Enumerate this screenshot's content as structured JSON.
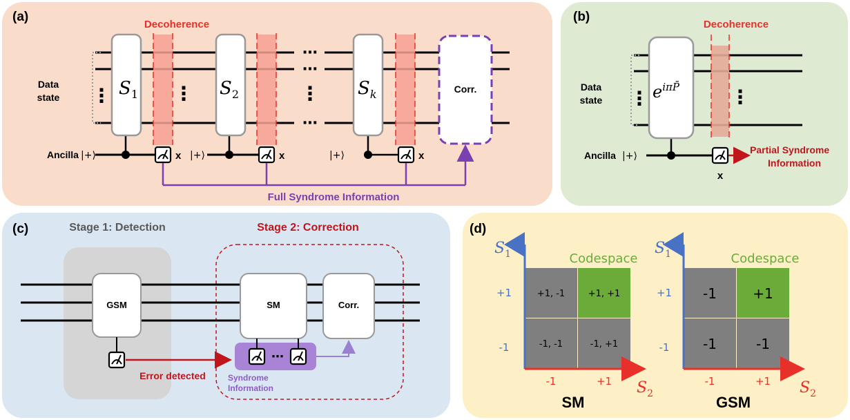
{
  "panel_a": {
    "label": "(a)",
    "decoherence": "Decoherence",
    "data_state_line1": "Data",
    "data_state_line2": "state",
    "stab1": "S",
    "stab1_sub": "1",
    "stab2": "S",
    "stab2_sub": "2",
    "stabk": "S",
    "stabk_sub": "k",
    "corr": "Corr.",
    "ancilla": "Ancilla",
    "ket_plus": "|+⟩",
    "x": "x",
    "full_syndrome": "Full Syndrome Information",
    "dots": "⋯",
    "vdots": "⋮"
  },
  "panel_b": {
    "label": "(b)",
    "decoherence": "Decoherence",
    "data_state_line1": "Data",
    "data_state_line2": "state",
    "gate": "e",
    "gate_exp": "iπP̄",
    "ancilla": "Ancilla",
    "ket_plus": "|+⟩",
    "x": "x",
    "partial_line1": "Partial Syndrome",
    "partial_line2": "Information",
    "vdots": "⋮"
  },
  "panel_c": {
    "label": "(c)",
    "stage1": "Stage 1: Detection",
    "stage2": "Stage 2: Correction",
    "gsm": "GSM",
    "sm": "SM",
    "corr": "Corr.",
    "error_detected": "Error detected",
    "syndrome_line1": "Syndrome",
    "syndrome_line2": "Information",
    "dots": "⋯"
  },
  "panel_d": {
    "label": "(d)",
    "s1": "S",
    "s1_sub": "1",
    "s2": "S",
    "s2_sub": "2",
    "codespace": "Codespace",
    "tick_plus": "+1",
    "tick_minus": "-1",
    "sm_title": "SM",
    "gsm_title": "GSM",
    "sm_cells": [
      "+1, -1",
      "+1, +1",
      "-1, -1",
      "-1, +1"
    ],
    "gsm_cells": [
      "-1",
      "+1",
      "-1",
      "-1"
    ]
  },
  "colors": {
    "panel_a_bg": "#f9dcc9",
    "panel_b_bg": "#dfead3",
    "panel_c_bg": "#dbe6f3",
    "panel_d_bg": "#fdefc6",
    "decoherence_red": "#e8302a",
    "purple": "#7a3fb0",
    "dark_red": "#c0151b",
    "green": "#6aab3a",
    "gray_cell": "#7f7f7f",
    "axis_blue": "#4a72c4"
  }
}
